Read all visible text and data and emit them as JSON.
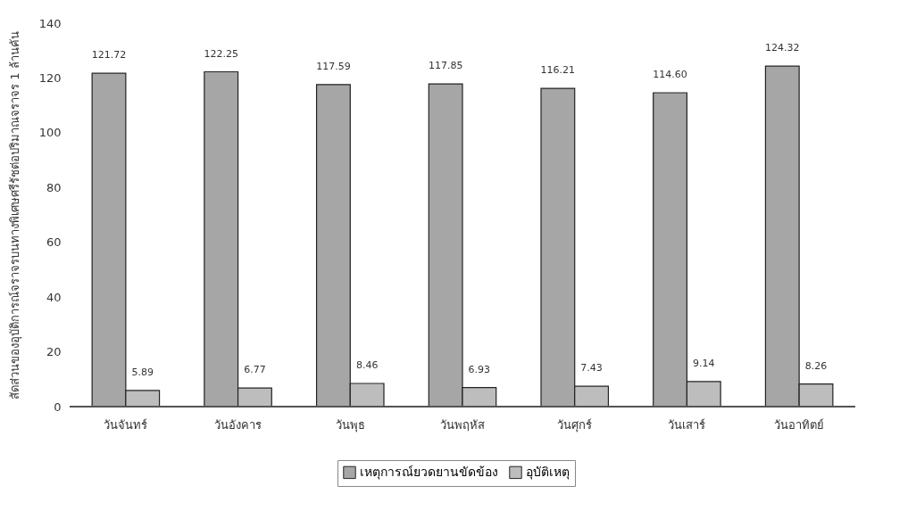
{
  "chart_data": {
    "type": "bar",
    "ylabel": "สัดส่วนของอุบัติการณ์จราจรบนทางพิเศษศรีรัชต่อปริมาณจราจร 1 ล้านคัน",
    "categories": [
      "วันจันทร์",
      "วันอังคาร",
      "วันพุธ",
      "วันพฤหัส",
      "วันศุกร์",
      "วันเสาร์",
      "วันอาทิตย์"
    ],
    "series": [
      {
        "name": "เหตุการณ์ยวดยานขัดข้อง",
        "color": "#a6a6a6",
        "values": [
          121.72,
          122.25,
          117.59,
          117.85,
          116.21,
          114.6,
          124.32
        ],
        "value_labels": [
          "121.72",
          "122.25",
          "117.59",
          "117.85",
          "116.21",
          "114.60",
          "124.32"
        ]
      },
      {
        "name": "อุบัติเหตุ",
        "color": "#bdbdbd",
        "values": [
          5.89,
          6.77,
          8.46,
          6.93,
          7.43,
          9.14,
          8.26
        ],
        "value_labels": [
          "5.89",
          "6.77",
          "8.46",
          "6.93",
          "7.43",
          "9.14",
          "8.26"
        ]
      }
    ],
    "ylim": [
      0,
      140
    ],
    "yticks": [
      0,
      20,
      40,
      60,
      80,
      100,
      120,
      140
    ],
    "legend": "bottom",
    "grid": false
  }
}
